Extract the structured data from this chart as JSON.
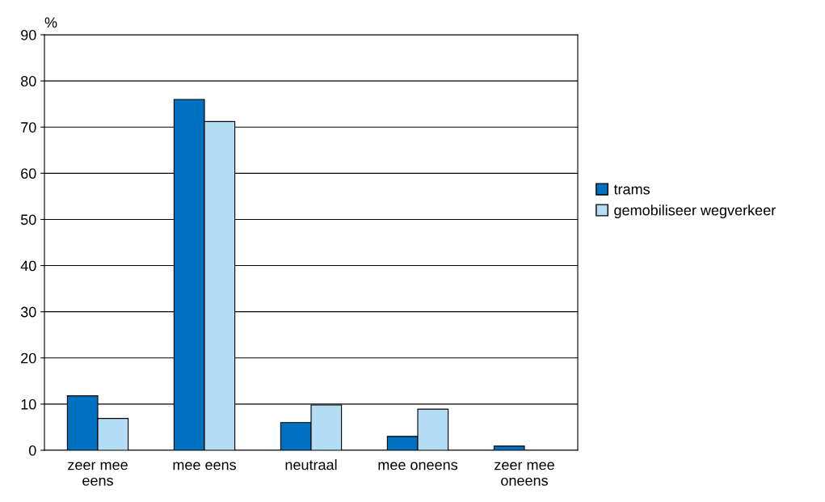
{
  "chart_data": {
    "type": "bar",
    "ylabel": "%",
    "categories": [
      "zeer mee\neens",
      "mee eens",
      "neutraal",
      "mee oneens",
      "zeer mee\noneens"
    ],
    "series": [
      {
        "name": "trams",
        "color": "#0070c0",
        "values": [
          11.8,
          76,
          6,
          3,
          0.9
        ]
      },
      {
        "name": "gemobiliseer wegverkeer",
        "color": "#b4dcf5",
        "values": [
          6.9,
          71.2,
          9.8,
          8.9,
          null
        ]
      }
    ],
    "ylim": [
      0,
      90
    ],
    "yticks": [
      0,
      10,
      20,
      30,
      40,
      50,
      60,
      70,
      80,
      90
    ],
    "grid": "y",
    "legend": "right"
  }
}
